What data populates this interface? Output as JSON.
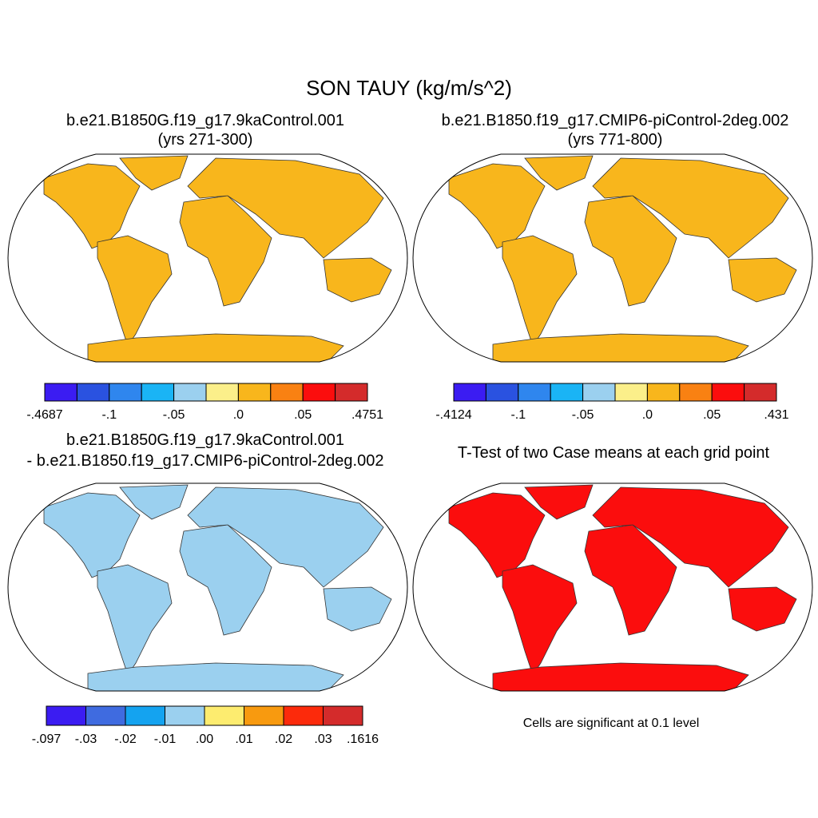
{
  "title": "SON TAUY (kg/m/s^2)",
  "panels": [
    {
      "title": [
        "b.e21.B1850G.f19_g17.9kaControl.001",
        "(yrs 271-300)"
      ],
      "colorbar": {
        "colors": [
          "#3b1cf2",
          "#2a52e0",
          "#2f86ee",
          "#1ab4f5",
          "#9bd0ef",
          "#fbef8a",
          "#f8b61c",
          "#f98112",
          "#fb0d0d",
          "#d42b2b"
        ],
        "labels": [
          "-.4687",
          "-.1",
          "-.05",
          ".0",
          ".05",
          ".4751"
        ]
      }
    },
    {
      "title": [
        "b.e21.B1850.f19_g17.CMIP6-piControl-2deg.002",
        "(yrs 771-800)"
      ],
      "colorbar": {
        "colors": [
          "#3b1cf2",
          "#2a52e0",
          "#2f86ee",
          "#1ab4f5",
          "#9bd0ef",
          "#fbef8a",
          "#f8b61c",
          "#f98112",
          "#fb0d0d",
          "#d42b2b"
        ],
        "labels": [
          "-.4124",
          "-.1",
          "-.05",
          ".0",
          ".05",
          ".431"
        ]
      }
    },
    {
      "title": [
        "b.e21.B1850G.f19_g17.9kaControl.001",
        "- b.e21.B1850.f19_g17.CMIP6-piControl-2deg.002"
      ],
      "colorbar": {
        "colors": [
          "#3b1cf2",
          "#3f6be0",
          "#14a3f0",
          "#9bd0ef",
          "#fdec6f",
          "#f89a0f",
          "#fc2a0b",
          "#d42b2b"
        ],
        "labels": [
          "-.097",
          "-.03",
          "-.02",
          "-.01",
          ".00",
          ".01",
          ".02",
          ".03",
          ".1616"
        ]
      }
    },
    {
      "title": [
        "T-Test of two Case means at each grid point"
      ],
      "note": "Cells are significant at 0.1 level"
    }
  ]
}
